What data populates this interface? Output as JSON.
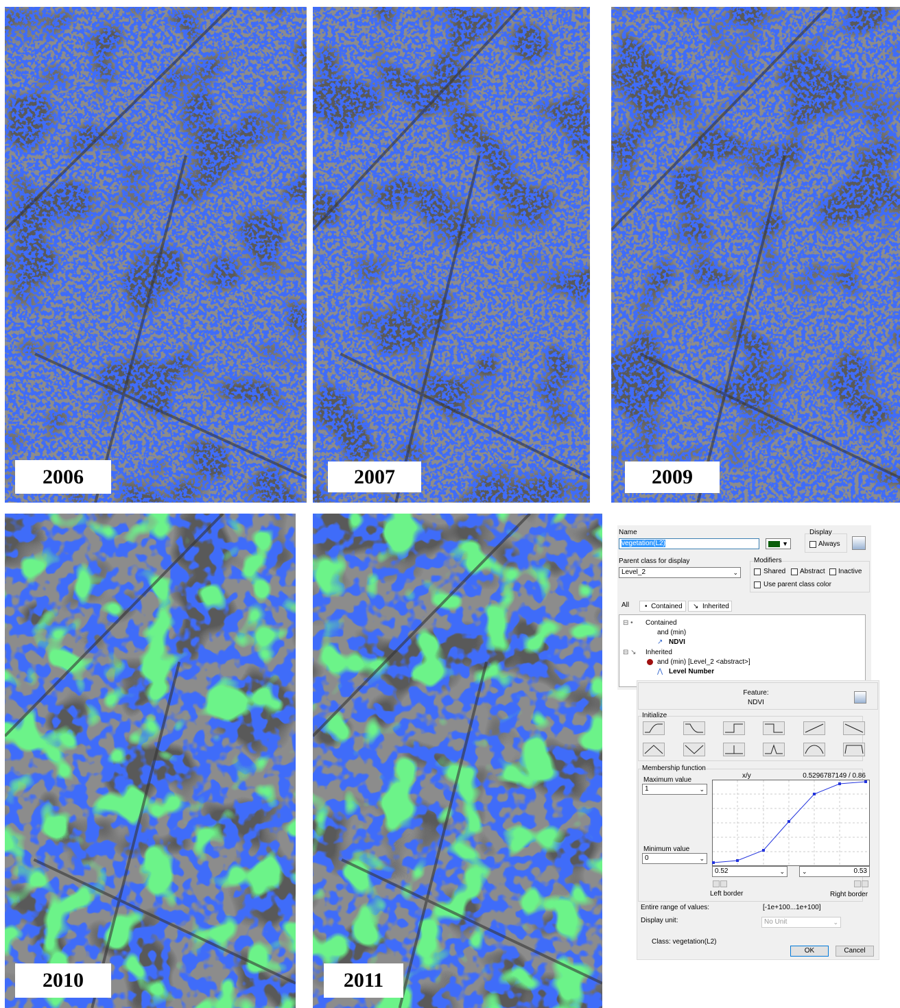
{
  "panels": [
    {
      "year": "2006"
    },
    {
      "year": "2007"
    },
    {
      "year": "2009"
    },
    {
      "year": "2010"
    },
    {
      "year": "2011"
    }
  ],
  "dialog": {
    "name_label": "Name",
    "name_value": "vegetation(L2)",
    "display_label": "Display",
    "always": "Always",
    "parent_label": "Parent class for display",
    "parent_value": "Level_2",
    "modifiers_label": "Modifiers",
    "modifiers": [
      "Shared",
      "Abstract",
      "Inactive",
      "Use parent class color"
    ],
    "tabs": [
      "All",
      "Contained",
      "Inherited"
    ],
    "tree": [
      "Contained",
      "and (min)",
      "NDVI",
      "Inherited",
      "and (min) [Level_2 <abstract>]",
      "Level Number"
    ],
    "feature_label": "Feature:",
    "feature_value": "NDVI",
    "initialize_label": "Initialize",
    "membership_label": "Membership function",
    "xy_label": "x/y",
    "xy_value": "0.5296787149 / 0.86",
    "max_label": "Maximum value",
    "max_value": "1",
    "min_label": "Minimum value",
    "min_value": "0",
    "left_value": "0.52",
    "right_value": "0.53",
    "left_border": "Left border",
    "right_border": "Right border",
    "range_label": "Entire range of values:",
    "range_value": "[-1e+100...1e+100]",
    "unit_label": "Display unit:",
    "unit_value": "No Unit",
    "class_label": "Class: vegetation(L2)",
    "ok": "OK",
    "cancel": "Cancel"
  }
}
